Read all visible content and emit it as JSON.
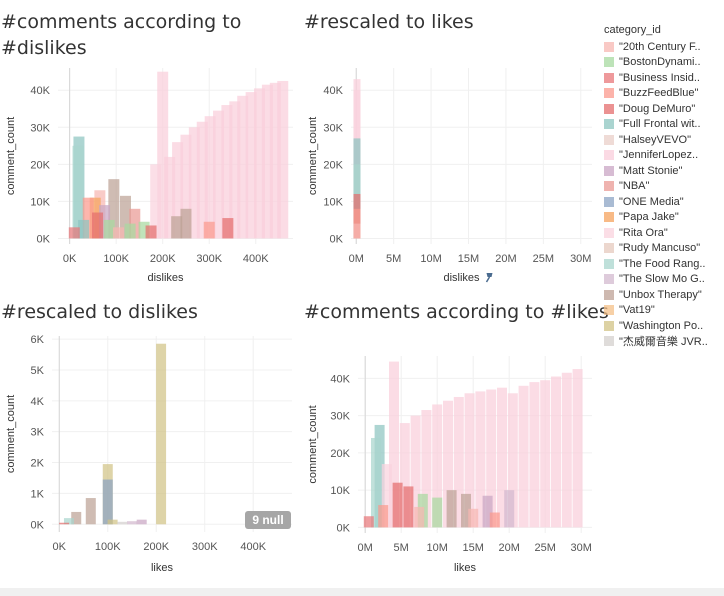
{
  "legend": {
    "title": "category_id",
    "items": [
      {
        "label": "\"20th Century F..",
        "color": "#f7b7b2"
      },
      {
        "label": "\"BostonDynami..",
        "color": "#a7d9a0"
      },
      {
        "label": "\"Business Insid..",
        "color": "#e8777a"
      },
      {
        "label": "\"BuzzFeedBlue\"",
        "color": "#fb9a8d"
      },
      {
        "label": "\"Doug DeMuro\"",
        "color": "#e46e6e"
      },
      {
        "label": "\"Full Frontal wit..",
        "color": "#8ec5c0"
      },
      {
        "label": "\"HalseyVEVO\"",
        "color": "#e9cfc8"
      },
      {
        "label": "\"JenniferLopez..",
        "color": "#f9cedb"
      },
      {
        "label": "\"Matt Stonie\"",
        "color": "#c9a6c4"
      },
      {
        "label": "\"NBA\"",
        "color": "#ea9a94"
      },
      {
        "label": "\"ONE Media\"",
        "color": "#8ca4c4"
      },
      {
        "label": "\"Papa Jake\"",
        "color": "#f5a35d"
      },
      {
        "label": "\"Rita Ora\"",
        "color": "#fad3de"
      },
      {
        "label": "\"Rudy Mancuso\"",
        "color": "#e6c9bd"
      },
      {
        "label": "\"The Food Rang..",
        "color": "#a9d5cd"
      },
      {
        "label": "\"The Slow Mo G..",
        "color": "#d3b9cf"
      },
      {
        "label": "\"Unbox Therapy\"",
        "color": "#bda295"
      },
      {
        "label": "\"Vat19\"",
        "color": "#f4c088"
      },
      {
        "label": "\"Washington Po..",
        "color": "#d1c386"
      },
      {
        "label": "\"杰威爾音樂 JVR..",
        "color": "#d4d0ce"
      }
    ]
  },
  "badge": {
    "null_text": "9 null"
  },
  "chart_data": [
    {
      "id": "c1",
      "type": "bar",
      "title": "#comments according to\n#dislikes",
      "xlabel": "dislikes",
      "ylabel": "comment_count",
      "x_ticks": [
        "0K",
        "100K",
        "200K",
        "300K",
        "400K"
      ],
      "x_tick_values": [
        0,
        100000,
        200000,
        300000,
        400000
      ],
      "y_ticks": [
        "0K",
        "10K",
        "20K",
        "30K",
        "40K"
      ],
      "y_tick_values": [
        0,
        10000,
        20000,
        30000,
        40000
      ],
      "xlim": [
        -25000,
        480000
      ],
      "ylim": [
        -1500,
        46000
      ],
      "bars": [
        {
          "x": 200000,
          "y": 45000,
          "s": 7
        },
        {
          "x": 215000,
          "y": 22000,
          "s": 7
        },
        {
          "x": 232000,
          "y": 26000,
          "s": 7
        },
        {
          "x": 250000,
          "y": 28000,
          "s": 7
        },
        {
          "x": 268000,
          "y": 30000,
          "s": 7
        },
        {
          "x": 285000,
          "y": 31500,
          "s": 7
        },
        {
          "x": 302000,
          "y": 33000,
          "s": 7
        },
        {
          "x": 320000,
          "y": 34500,
          "s": 7
        },
        {
          "x": 338000,
          "y": 36000,
          "s": 7
        },
        {
          "x": 355000,
          "y": 37000,
          "s": 7
        },
        {
          "x": 372000,
          "y": 38500,
          "s": 7
        },
        {
          "x": 390000,
          "y": 39500,
          "s": 7
        },
        {
          "x": 408000,
          "y": 40500,
          "s": 7
        },
        {
          "x": 425000,
          "y": 41500,
          "s": 7
        },
        {
          "x": 442000,
          "y": 42000,
          "s": 7
        },
        {
          "x": 458000,
          "y": 42500,
          "s": 7
        },
        {
          "x": 185000,
          "y": 20000,
          "s": 12
        },
        {
          "x": 20000,
          "y": 27500,
          "s": 5
        },
        {
          "x": 18000,
          "y": 25000,
          "s": 14
        },
        {
          "x": 65000,
          "y": 13000,
          "s": 0
        },
        {
          "x": 55000,
          "y": 11000,
          "s": 11
        },
        {
          "x": 40000,
          "y": 11000,
          "s": 3
        },
        {
          "x": 95000,
          "y": 16000,
          "s": 16
        },
        {
          "x": 120000,
          "y": 11500,
          "s": 16
        },
        {
          "x": 75000,
          "y": 9000,
          "s": 8
        },
        {
          "x": 140000,
          "y": 8000,
          "s": 9
        },
        {
          "x": 160000,
          "y": 4500,
          "s": 1
        },
        {
          "x": 250000,
          "y": 8000,
          "s": 16
        },
        {
          "x": 230000,
          "y": 6000,
          "s": 16
        },
        {
          "x": 300000,
          "y": 4500,
          "s": 3
        },
        {
          "x": 340000,
          "y": 5500,
          "s": 4
        },
        {
          "x": 60000,
          "y": 7000,
          "s": 4
        },
        {
          "x": 85000,
          "y": 5000,
          "s": 1
        },
        {
          "x": 105000,
          "y": 3000,
          "s": 0
        },
        {
          "x": 130000,
          "y": 4000,
          "s": 1
        },
        {
          "x": 30000,
          "y": 5000,
          "s": 5
        },
        {
          "x": 10000,
          "y": 3000,
          "s": 2
        },
        {
          "x": 175000,
          "y": 3500,
          "s": 4
        }
      ]
    },
    {
      "id": "c2",
      "type": "bar",
      "title": "#rescaled to likes",
      "xlabel": "dislikes",
      "ylabel": "comment_count",
      "x_ticks": [
        "0M",
        "5M",
        "10M",
        "15M",
        "20M",
        "25M",
        "30M"
      ],
      "x_tick_values": [
        0,
        5000000,
        10000000,
        15000000,
        20000000,
        25000000,
        30000000
      ],
      "y_ticks": [
        "0K",
        "10K",
        "20K",
        "30K",
        "40K"
      ],
      "y_tick_values": [
        0,
        10000,
        20000,
        30000,
        40000
      ],
      "xlim": [
        -700000,
        31500000
      ],
      "ylim": [
        -1500,
        46000
      ],
      "bars": [
        {
          "x": 100000,
          "y": 43000,
          "s": 7
        },
        {
          "x": 100000,
          "y": 40000,
          "s": 12
        },
        {
          "x": 100000,
          "y": 27000,
          "s": 5
        },
        {
          "x": 100000,
          "y": 20000,
          "s": 14
        },
        {
          "x": 100000,
          "y": 12000,
          "s": 4
        },
        {
          "x": 100000,
          "y": 8000,
          "s": 3
        },
        {
          "x": 100000,
          "y": 4000,
          "s": 0
        }
      ]
    },
    {
      "id": "c3",
      "type": "bar",
      "title": "#rescaled to dislikes",
      "xlabel": "likes",
      "ylabel": "comment_count",
      "x_ticks": [
        "0K",
        "100K",
        "200K",
        "300K",
        "400K"
      ],
      "x_tick_values": [
        0,
        100000,
        200000,
        300000,
        400000
      ],
      "y_ticks": [
        "0K",
        "1K",
        "2K",
        "3K",
        "4K",
        "5K",
        "6K"
      ],
      "y_tick_values": [
        0,
        1000,
        2000,
        3000,
        4000,
        5000,
        6000
      ],
      "xlim": [
        -15000,
        480000
      ],
      "ylim": [
        -250,
        6100
      ],
      "bars": [
        {
          "x": 210000,
          "y": 5850,
          "s": 18
        },
        {
          "x": 100000,
          "y": 1950,
          "s": 18
        },
        {
          "x": 100000,
          "y": 1450,
          "s": 10
        },
        {
          "x": 65000,
          "y": 850,
          "s": 16
        },
        {
          "x": 35000,
          "y": 400,
          "s": 16
        },
        {
          "x": 20000,
          "y": 200,
          "s": 14
        },
        {
          "x": 10000,
          "y": 50,
          "s": 4
        },
        {
          "x": 110000,
          "y": 150,
          "s": 18
        },
        {
          "x": 150000,
          "y": 100,
          "s": 15
        },
        {
          "x": 170000,
          "y": 150,
          "s": 8
        },
        {
          "x": 130000,
          "y": 80,
          "s": 19
        }
      ]
    },
    {
      "id": "c4",
      "type": "bar",
      "title": "#comments according to #likes",
      "xlabel": "likes",
      "ylabel": "comment_count",
      "x_ticks": [
        "0M",
        "5M",
        "10M",
        "15M",
        "20M",
        "25M",
        "30M"
      ],
      "x_tick_values": [
        0,
        5000000,
        10000000,
        15000000,
        20000000,
        25000000,
        30000000
      ],
      "y_ticks": [
        "0K",
        "10K",
        "20K",
        "30K",
        "40K"
      ],
      "y_tick_values": [
        0,
        10000,
        20000,
        30000,
        40000
      ],
      "xlim": [
        -1000000,
        31500000
      ],
      "ylim": [
        -1500,
        46000
      ],
      "bars": [
        {
          "x": 4000000,
          "y": 44500,
          "s": 7
        },
        {
          "x": 5500000,
          "y": 28000,
          "s": 7
        },
        {
          "x": 7000000,
          "y": 30000,
          "s": 7
        },
        {
          "x": 8500000,
          "y": 31500,
          "s": 7
        },
        {
          "x": 10000000,
          "y": 33000,
          "s": 7
        },
        {
          "x": 11500000,
          "y": 34000,
          "s": 7
        },
        {
          "x": 13000000,
          "y": 35000,
          "s": 7
        },
        {
          "x": 14500000,
          "y": 36000,
          "s": 7
        },
        {
          "x": 16000000,
          "y": 36500,
          "s": 7
        },
        {
          "x": 17500000,
          "y": 37000,
          "s": 7
        },
        {
          "x": 19000000,
          "y": 37500,
          "s": 7
        },
        {
          "x": 20500000,
          "y": 36000,
          "s": 7
        },
        {
          "x": 22000000,
          "y": 38000,
          "s": 7
        },
        {
          "x": 23500000,
          "y": 39000,
          "s": 7
        },
        {
          "x": 25000000,
          "y": 39500,
          "s": 7
        },
        {
          "x": 26500000,
          "y": 40500,
          "s": 7
        },
        {
          "x": 28000000,
          "y": 41500,
          "s": 7
        },
        {
          "x": 29500000,
          "y": 42500,
          "s": 7
        },
        {
          "x": 2000000,
          "y": 27500,
          "s": 5
        },
        {
          "x": 1500000,
          "y": 24000,
          "s": 14
        },
        {
          "x": 3000000,
          "y": 17000,
          "s": 12
        },
        {
          "x": 4500000,
          "y": 12000,
          "s": 4
        },
        {
          "x": 6000000,
          "y": 11000,
          "s": 4
        },
        {
          "x": 8000000,
          "y": 9000,
          "s": 1
        },
        {
          "x": 10000000,
          "y": 8000,
          "s": 1
        },
        {
          "x": 12000000,
          "y": 10000,
          "s": 16
        },
        {
          "x": 14000000,
          "y": 9000,
          "s": 16
        },
        {
          "x": 17000000,
          "y": 8500,
          "s": 8
        },
        {
          "x": 20000000,
          "y": 10000,
          "s": 15
        },
        {
          "x": 2500000,
          "y": 6000,
          "s": 3
        },
        {
          "x": 500000,
          "y": 3000,
          "s": 2
        },
        {
          "x": 15000000,
          "y": 5000,
          "s": 0
        },
        {
          "x": 18000000,
          "y": 4000,
          "s": 3
        },
        {
          "x": 7500000,
          "y": 5500,
          "s": 0
        }
      ]
    }
  ]
}
